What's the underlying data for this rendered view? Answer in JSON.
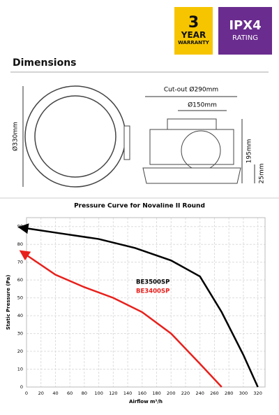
{
  "badges": {
    "warranty": {
      "number": "3",
      "line1": "YEAR",
      "line2": "WARRANTY"
    },
    "rating": {
      "line1": "IPX4",
      "line2": "RATING"
    }
  },
  "dimensions": {
    "heading": "Dimensions",
    "labels": [
      "Ø330mm",
      "Cut-out Ø290mm",
      "Ø150mm",
      "195mm",
      "25mm"
    ]
  },
  "chart_data": {
    "type": "line",
    "title": "Pressure Curve for Novaline II Round",
    "x_label": "Airflow m³/h",
    "y_label": "Static Pressure (Pa)",
    "xlim": [
      0,
      330
    ],
    "ylim": [
      0,
      95
    ],
    "xticks": [
      0,
      20,
      40,
      60,
      80,
      100,
      120,
      140,
      160,
      180,
      200,
      220,
      240,
      260,
      280,
      300,
      320
    ],
    "yticks": [
      0,
      10,
      20,
      30,
      40,
      50,
      60,
      70,
      80,
      90
    ],
    "grid": true,
    "series": [
      {
        "name": "BE3500SP",
        "color": "#000000",
        "x": [
          0,
          50,
          100,
          150,
          200,
          240,
          270,
          300,
          320
        ],
        "values": [
          89,
          86,
          83,
          78,
          71,
          62,
          42,
          18,
          0
        ]
      },
      {
        "name": "BE3400SP",
        "color": "#e8201c",
        "x": [
          0,
          40,
          80,
          120,
          160,
          200,
          240,
          270
        ],
        "values": [
          74,
          63,
          56,
          50,
          42,
          30,
          13,
          0
        ]
      }
    ]
  }
}
